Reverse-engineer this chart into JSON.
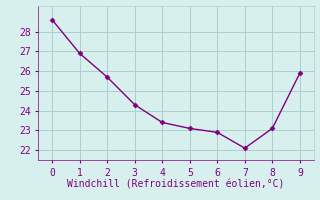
{
  "x": [
    0,
    1,
    2,
    3,
    4,
    5,
    6,
    7,
    8,
    9
  ],
  "y": [
    28.6,
    26.9,
    25.7,
    24.3,
    23.4,
    23.1,
    22.9,
    22.1,
    23.1,
    25.9
  ],
  "line_color": "#800080",
  "marker": "D",
  "marker_size": 2.5,
  "xlabel": "Windchill (Refroidissement éolien,°C)",
  "xlim": [
    -0.5,
    9.5
  ],
  "ylim": [
    21.5,
    29.3
  ],
  "yticks": [
    22,
    23,
    24,
    25,
    26,
    27,
    28
  ],
  "xticks": [
    0,
    1,
    2,
    3,
    4,
    5,
    6,
    7,
    8,
    9
  ],
  "background_color": "#d7f0ed",
  "grid_color": "#aacfcf",
  "label_color": "#800080",
  "label_fontsize": 7,
  "tick_fontsize": 7,
  "linewidth": 1.0
}
